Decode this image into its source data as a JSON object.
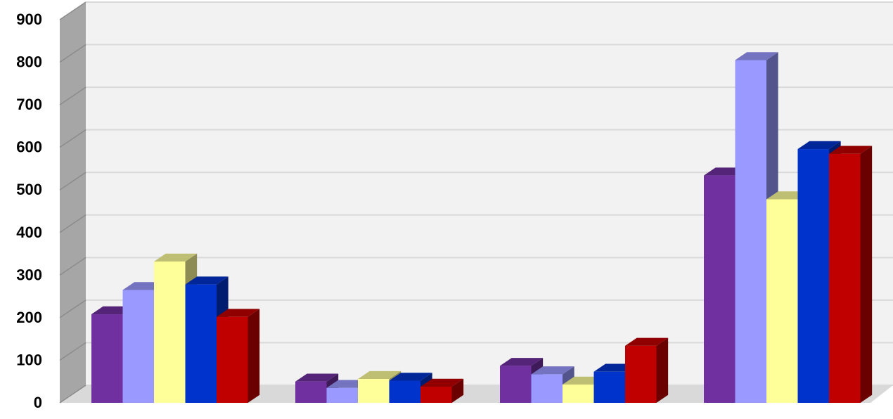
{
  "chart_data": {
    "type": "bar",
    "three_d": true,
    "categories": [
      "",
      "",
      "",
      ""
    ],
    "series": [
      {
        "color": "#7030A0",
        "values": [
          208,
          50,
          87,
          534
        ]
      },
      {
        "color": "#9999FF",
        "values": [
          265,
          35,
          67,
          805
        ]
      },
      {
        "color": "#FFFF99",
        "values": [
          332,
          56,
          43,
          478
        ]
      },
      {
        "color": "#0033CC",
        "values": [
          278,
          52,
          73,
          596
        ]
      },
      {
        "color": "#C00000",
        "values": [
          202,
          38,
          134,
          585
        ]
      }
    ],
    "title": "",
    "xlabel": "",
    "ylabel": "",
    "ylim": [
      0,
      900
    ],
    "yticks": [
      "0",
      "100",
      "200",
      "300",
      "400",
      "500",
      "600",
      "700",
      "800",
      "900"
    ],
    "grid": true,
    "legend": "none",
    "wall_color": "#F2F2F2",
    "side_wall_color": "#A6A6A6",
    "gridline_color": "#D9D9D9"
  }
}
